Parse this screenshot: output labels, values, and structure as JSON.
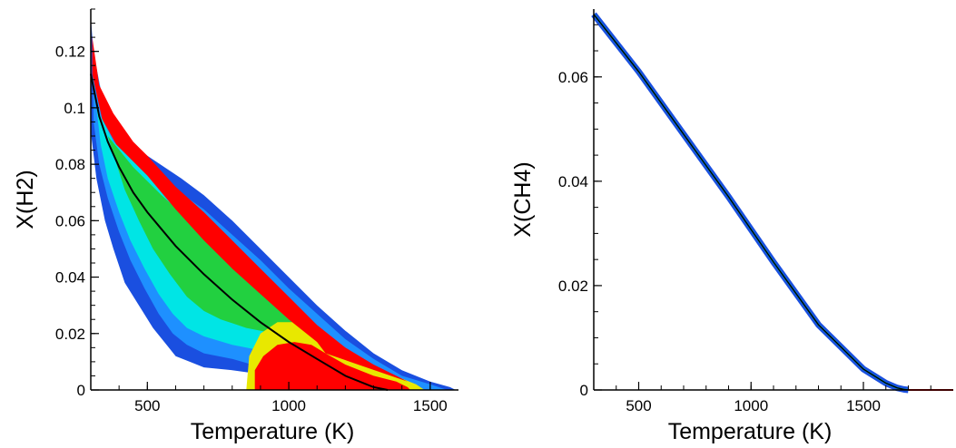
{
  "chart_data": [
    {
      "type": "heatmap",
      "xlabel": "Temperature (K)",
      "ylabel": "X(H2)",
      "xlim": [
        300,
        1600
      ],
      "ylim": [
        0,
        0.135
      ],
      "xticks": [
        500,
        1000,
        1500
      ],
      "xtick_labels": [
        "500",
        "1000",
        "1500"
      ],
      "yticks": [
        0,
        0.02,
        0.04,
        0.06,
        0.08,
        0.1,
        0.12
      ],
      "ytick_labels": [
        "0",
        "0.02",
        "0.04",
        "0.06",
        "0.08",
        "0.1",
        "0.12"
      ],
      "grid": false,
      "density_colors": [
        "#1a4fe0",
        "#1e90ff",
        "#00e5e5",
        "#33e0a0",
        "#22d040",
        "#e8e800",
        "#ff0000"
      ],
      "regions": {
        "outer_envelope": {
          "upper": [
            [
              302,
              0.13
            ],
            [
              310,
              0.118
            ],
            [
              330,
              0.108
            ],
            [
              360,
              0.1
            ],
            [
              400,
              0.093
            ],
            [
              450,
              0.087
            ],
            [
              500,
              0.083
            ],
            [
              560,
              0.079
            ],
            [
              620,
              0.075
            ],
            [
              700,
              0.069
            ],
            [
              800,
              0.06
            ],
            [
              900,
              0.05
            ],
            [
              1000,
              0.04
            ],
            [
              1100,
              0.03
            ],
            [
              1200,
              0.021
            ],
            [
              1300,
              0.013
            ],
            [
              1400,
              0.007
            ],
            [
              1500,
              0.003
            ],
            [
              1570,
              0.001
            ],
            [
              1590,
              0.0
            ]
          ],
          "lower": [
            [
              302,
              0.09
            ],
            [
              320,
              0.075
            ],
            [
              350,
              0.06
            ],
            [
              380,
              0.05
            ],
            [
              420,
              0.038
            ],
            [
              470,
              0.03
            ],
            [
              520,
              0.022
            ],
            [
              560,
              0.017
            ],
            [
              600,
              0.012
            ],
            [
              650,
              0.01
            ],
            [
              700,
              0.008
            ],
            [
              800,
              0.007
            ],
            [
              870,
              0.006
            ],
            [
              900,
              0.0
            ]
          ]
        },
        "red_band": {
          "upper": [
            [
              305,
              0.125
            ],
            [
              330,
              0.108
            ],
            [
              380,
              0.098
            ],
            [
              450,
              0.088
            ],
            [
              500,
              0.083
            ],
            [
              600,
              0.072
            ],
            [
              700,
              0.063
            ],
            [
              800,
              0.053
            ],
            [
              900,
              0.043
            ],
            [
              1000,
              0.033
            ],
            [
              1100,
              0.023
            ],
            [
              1200,
              0.015
            ],
            [
              1300,
              0.009
            ],
            [
              1380,
              0.005
            ],
            [
              1420,
              0.003
            ]
          ],
          "lower": [
            [
              305,
              0.112
            ],
            [
              340,
              0.096
            ],
            [
              390,
              0.087
            ],
            [
              450,
              0.081
            ],
            [
              500,
              0.076
            ],
            [
              600,
              0.064
            ],
            [
              700,
              0.053
            ],
            [
              800,
              0.043
            ],
            [
              900,
              0.034
            ],
            [
              1000,
              0.025
            ],
            [
              1100,
              0.017
            ],
            [
              1130,
              0.013
            ]
          ]
        },
        "red_floor": [
          [
            880,
            0.0
          ],
          [
            880,
            0.007
          ],
          [
            910,
            0.012
          ],
          [
            960,
            0.016
          ],
          [
            1020,
            0.017
          ],
          [
            1080,
            0.016
          ],
          [
            1130,
            0.013
          ],
          [
            1200,
            0.009
          ],
          [
            1300,
            0.005
          ],
          [
            1380,
            0.003
          ],
          [
            1420,
            0.001
          ],
          [
            1430,
            0.0
          ]
        ]
      },
      "series": [
        {
          "style": "black-line",
          "x": [
            300,
            330,
            360,
            400,
            450,
            500,
            550,
            600,
            700,
            800,
            900,
            1000,
            1100,
            1200,
            1300,
            1350
          ],
          "y": [
            0.112,
            0.097,
            0.088,
            0.079,
            0.07,
            0.063,
            0.057,
            0.051,
            0.041,
            0.032,
            0.024,
            0.017,
            0.011,
            0.005,
            0.001,
            0.0
          ]
        }
      ]
    },
    {
      "type": "line",
      "xlabel": "Temperature (K)",
      "ylabel": "X(CH4)",
      "xlim": [
        300,
        1900
      ],
      "ylim": [
        0,
        0.073
      ],
      "xticks": [
        500,
        1000,
        1500
      ],
      "xtick_labels": [
        "500",
        "1000",
        "1500"
      ],
      "yticks": [
        0,
        0.02,
        0.04,
        0.06
      ],
      "ytick_labels": [
        "0",
        "0.02",
        "0.04",
        "0.06"
      ],
      "grid": false,
      "series": [
        {
          "style": "blue-band-with-black-line",
          "x": [
            300,
            500,
            700,
            900,
            1100,
            1300,
            1500,
            1600,
            1650,
            1680,
            1700,
            1900
          ],
          "y": [
            0.072,
            0.061,
            0.049,
            0.037,
            0.0245,
            0.0125,
            0.004,
            0.0013,
            0.0004,
            0.0001,
            0.0,
            0.0
          ]
        }
      ]
    }
  ]
}
